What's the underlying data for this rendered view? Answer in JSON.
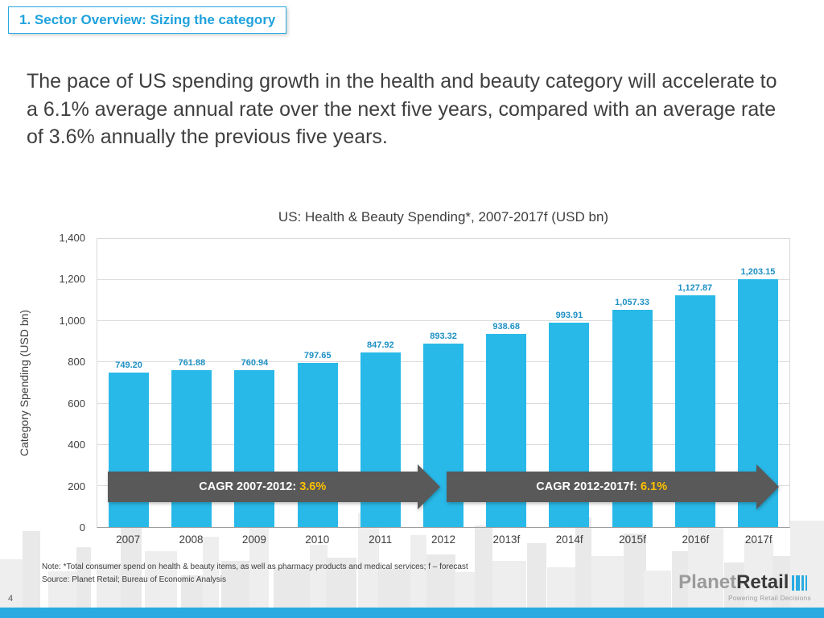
{
  "slide": {
    "header": "1. Sector Overview: Sizing the category",
    "body_text": "The pace of US spending growth in the health and beauty category will accelerate to a 6.1% average annual rate over the next five years, compared with an average rate of 3.6% annually the previous five years.",
    "page_number": "4",
    "note_line1": "Note: *Total consumer spend on health & beauty items, as well as pharmacy products and medical services; f – forecast",
    "note_line2": "Source: Planet Retail; Bureau of Economic Analysis",
    "logo": {
      "part1": "Planet",
      "part2": "Retail",
      "tagline": "Powering Retail Decisions"
    }
  },
  "chart_data": {
    "type": "bar",
    "title": "US: Health & Beauty Spending*, 2007-2017f (USD bn)",
    "xlabel": "",
    "ylabel": "Category Spending (USD bn)",
    "categories": [
      "2007",
      "2008",
      "2009",
      "2010",
      "2011",
      "2012",
      "2013f",
      "2014f",
      "2015f",
      "2016f",
      "2017f"
    ],
    "values": [
      749.2,
      761.88,
      760.94,
      797.65,
      847.92,
      893.32,
      938.68,
      993.91,
      1057.33,
      1127.87,
      1203.15
    ],
    "value_labels": [
      "749.20",
      "761.88",
      "760.94",
      "797.65",
      "847.92",
      "893.32",
      "938.68",
      "993.91",
      "1,057.33",
      "1,127.87",
      "1,203.15"
    ],
    "ylim": [
      0,
      1400
    ],
    "ytick_step": 200,
    "ytick_labels": [
      "0",
      "200",
      "400",
      "600",
      "800",
      "1,000",
      "1,200",
      "1,400"
    ],
    "grid": true,
    "legend": "none",
    "bar_color": "#29b9e8",
    "label_color": "#1e90c4",
    "annotations": [
      {
        "type": "block-arrow",
        "label": "CAGR 2007-2012: ",
        "highlight": "3.6%",
        "span_categories": [
          "2007",
          "2012"
        ]
      },
      {
        "type": "block-arrow",
        "label": "CAGR 2012-2017f: ",
        "highlight": "6.1%",
        "span_categories": [
          "2012",
          "2017f"
        ]
      }
    ]
  },
  "colors": {
    "accent": "#29abe2",
    "arrow_gray": "#595959",
    "highlight_yellow": "#ffc000"
  }
}
